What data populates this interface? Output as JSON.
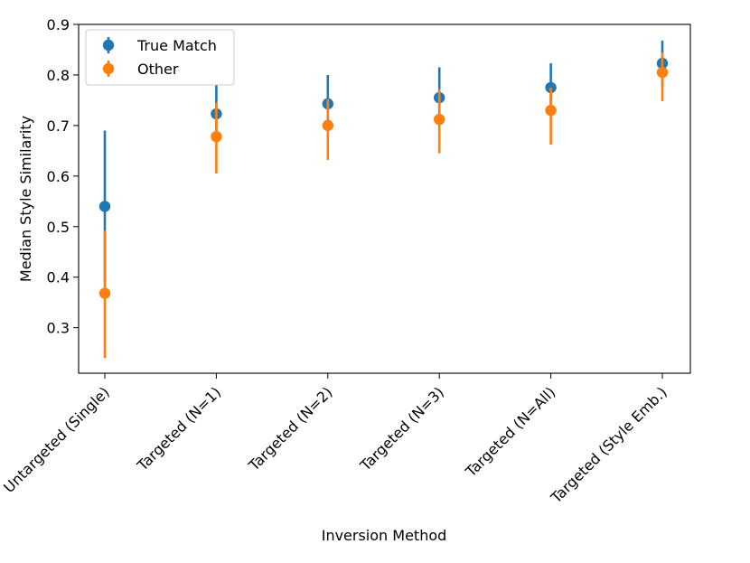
{
  "chart_data": {
    "type": "scatter",
    "title": "",
    "xlabel": "Inversion Method",
    "ylabel": "Median Style Similarity",
    "categories": [
      "Untargeted (Single)",
      "Targeted (N=1)",
      "Targeted (N=2)",
      "Targeted (N=3)",
      "Targeted (N=All)",
      "Targeted (Style Emb.)"
    ],
    "ylim": [
      0.21,
      0.9
    ],
    "yticks": [
      0.3,
      0.4,
      0.5,
      0.6,
      0.7,
      0.8,
      0.9
    ],
    "ytick_labels": [
      "0.3",
      "0.4",
      "0.5",
      "0.6",
      "0.7",
      "0.8",
      "0.9"
    ],
    "grid": false,
    "legend_position": "top-left",
    "series": [
      {
        "name": "True Match",
        "color": "#1f77b4",
        "values": [
          0.54,
          0.723,
          0.743,
          0.755,
          0.775,
          0.823
        ],
        "err_low": [
          0.39,
          0.665,
          0.685,
          0.695,
          0.725,
          0.778
        ],
        "err_high": [
          0.69,
          0.782,
          0.8,
          0.815,
          0.823,
          0.868
        ]
      },
      {
        "name": "Other",
        "color": "#ff7f0e",
        "values": [
          0.368,
          0.678,
          0.7,
          0.712,
          0.73,
          0.805
        ],
        "err_low": [
          0.24,
          0.605,
          0.632,
          0.645,
          0.662,
          0.748
        ],
        "err_high": [
          0.492,
          0.745,
          0.752,
          0.772,
          0.775,
          0.845
        ]
      }
    ]
  }
}
